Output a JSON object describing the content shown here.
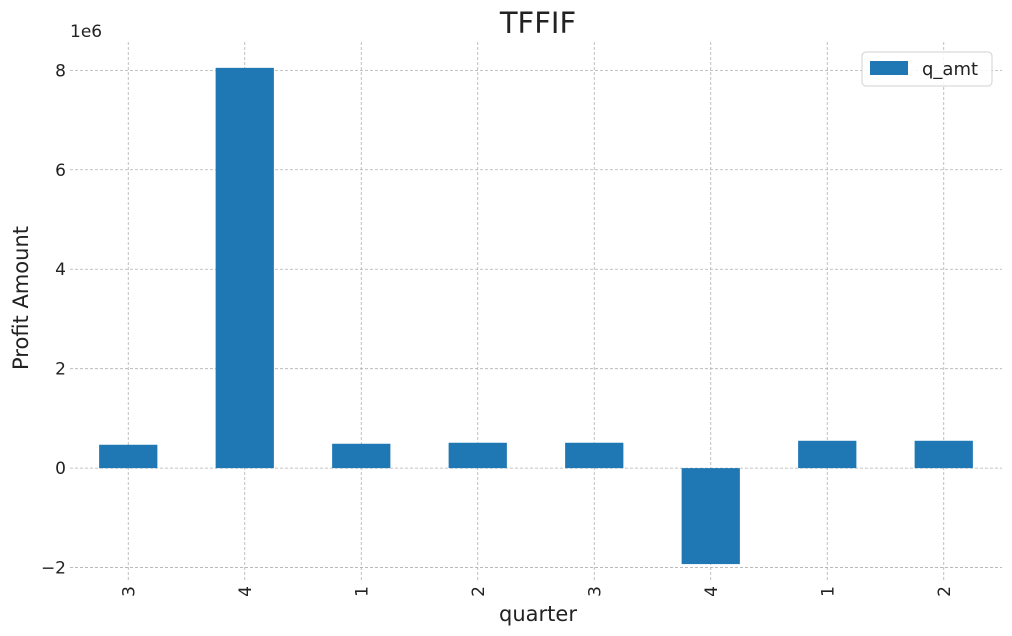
{
  "chart_data": {
    "type": "bar",
    "title": "TFFIF",
    "xlabel": "quarter",
    "ylabel": "Profit Amount",
    "scale_note": "1e6",
    "categories": [
      "3",
      "4",
      "1",
      "2",
      "3",
      "4",
      "1",
      "2"
    ],
    "series": [
      {
        "name": "q_amt",
        "color": "#1f77b4",
        "values": [
          470000,
          8050000,
          490000,
          510000,
          510000,
          -1930000,
          550000,
          550000
        ]
      }
    ],
    "ylim": [
      -2250000,
      8570000
    ],
    "yticks": [
      -2,
      0,
      2,
      4,
      6,
      8
    ],
    "ytick_multiplier": 1000000,
    "grid": true,
    "legend_position": "top-right"
  }
}
